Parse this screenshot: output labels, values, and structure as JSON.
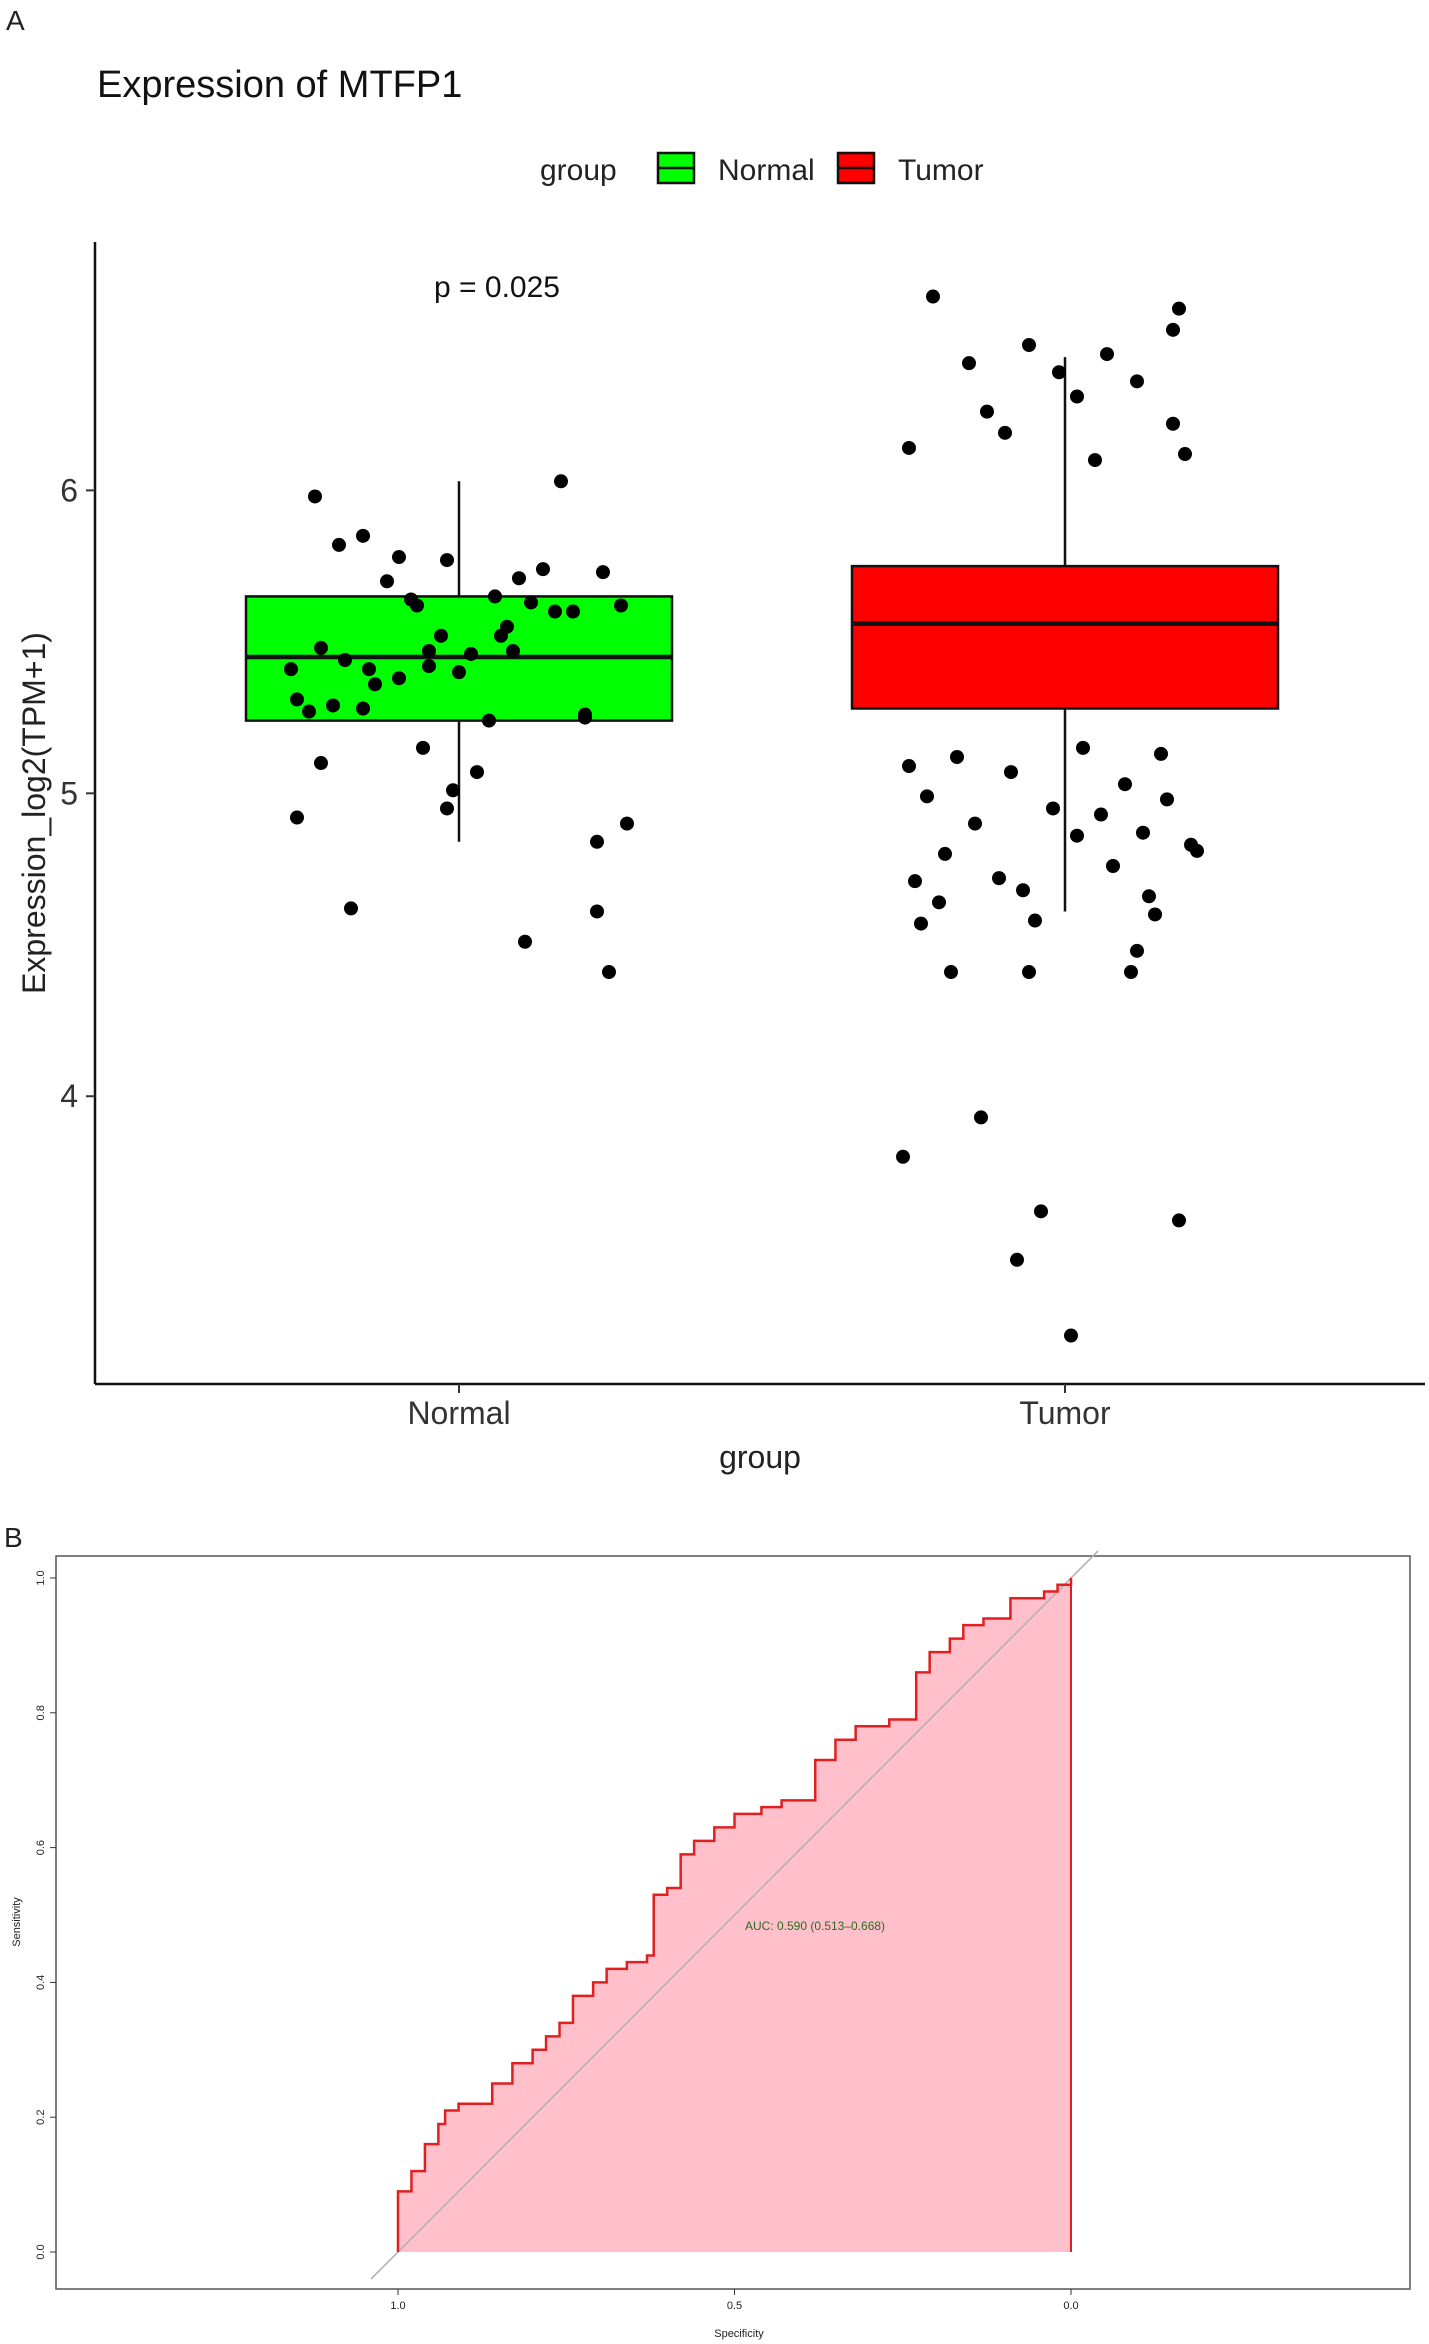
{
  "panel_a": {
    "letter": "A",
    "legend_title": "group",
    "pvalue_text": "p = 0.025"
  },
  "panel_b": {
    "letter": "B"
  },
  "colors": {
    "normal": "#00ff00",
    "tumor": "#ff0000",
    "roc_line": "#e02020",
    "roc_fill": "#ffc0cb",
    "diagonal": "#b0b0b0",
    "auc_text": "#2d6a1e"
  },
  "chart_data": [
    {
      "type": "box",
      "title": "Expression of MTFP1",
      "xlabel": "group",
      "ylabel": "Expression_log2(TPM+1)",
      "categories": [
        "Normal",
        "Tumor"
      ],
      "yticks": [
        4,
        5,
        6
      ],
      "ylim": [
        3.05,
        6.82
      ],
      "legend": {
        "title": "group",
        "position": "top",
        "entries": [
          "Normal",
          "Tumor"
        ]
      },
      "annotation": "p = 0.025",
      "boxes": [
        {
          "name": "Normal",
          "whisker_low": 4.84,
          "q1": 5.24,
          "median": 5.45,
          "q3": 5.65,
          "whisker_high": 6.03
        },
        {
          "name": "Tumor",
          "whisker_low": 4.61,
          "q1": 5.28,
          "median": 5.56,
          "q3": 5.75,
          "whisker_high": 6.44
        }
      ],
      "points": {
        "Normal": [
          [
            -0.27,
            4.92
          ],
          [
            -0.18,
            4.62
          ],
          [
            -0.23,
            5.1
          ],
          [
            -0.06,
            5.15
          ],
          [
            -0.02,
            4.95
          ],
          [
            0.11,
            4.51
          ],
          [
            0.23,
            4.84
          ],
          [
            0.23,
            4.61
          ],
          [
            0.25,
            4.41
          ],
          [
            0.28,
            4.9
          ],
          [
            -0.25,
            5.27
          ],
          [
            -0.21,
            5.29
          ],
          [
            -0.19,
            5.44
          ],
          [
            -0.15,
            5.41
          ],
          [
            -0.1,
            5.38
          ],
          [
            -0.05,
            5.47
          ],
          [
            0.02,
            5.46
          ],
          [
            0.05,
            5.24
          ],
          [
            0.08,
            5.55
          ],
          [
            0.12,
            5.63
          ],
          [
            0.16,
            5.6
          ],
          [
            0.21,
            5.26
          ],
          [
            0.24,
            5.73
          ],
          [
            0.27,
            5.62
          ],
          [
            -0.27,
            5.31
          ],
          [
            -0.23,
            5.48
          ],
          [
            -0.16,
            5.28
          ],
          [
            -0.12,
            5.7
          ],
          [
            -0.08,
            5.64
          ],
          [
            -0.03,
            5.52
          ],
          [
            0.0,
            5.4
          ],
          [
            0.03,
            5.07
          ],
          [
            0.06,
            5.65
          ],
          [
            0.1,
            5.71
          ],
          [
            0.14,
            5.74
          ],
          [
            0.19,
            5.6
          ],
          [
            -0.28,
            5.41
          ],
          [
            -0.24,
            5.98
          ],
          [
            -0.2,
            5.82
          ],
          [
            -0.16,
            5.85
          ],
          [
            -0.1,
            5.78
          ],
          [
            -0.02,
            5.77
          ],
          [
            0.17,
            6.03
          ],
          [
            -0.07,
            5.62
          ],
          [
            -0.05,
            5.42
          ],
          [
            0.07,
            5.52
          ],
          [
            -0.01,
            5.01
          ],
          [
            0.21,
            5.25
          ],
          [
            0.09,
            5.47
          ],
          [
            -0.14,
            5.36
          ]
        ],
        "Tumor": [
          [
            -0.22,
            6.64
          ],
          [
            -0.16,
            6.42
          ],
          [
            -0.06,
            6.48
          ],
          [
            0.07,
            6.45
          ],
          [
            0.18,
            6.53
          ],
          [
            0.19,
            6.6
          ],
          [
            -0.01,
            6.39
          ],
          [
            0.02,
            6.31
          ],
          [
            -0.13,
            6.26
          ],
          [
            0.12,
            6.36
          ],
          [
            0.18,
            6.22
          ],
          [
            -0.26,
            6.14
          ],
          [
            -0.1,
            6.19
          ],
          [
            0.05,
            6.1
          ],
          [
            0.2,
            6.12
          ],
          [
            -0.19,
            4.41
          ],
          [
            -0.06,
            4.41
          ],
          [
            0.11,
            4.41
          ],
          [
            -0.27,
            3.8
          ],
          [
            -0.14,
            3.93
          ],
          [
            -0.08,
            3.46
          ],
          [
            -0.04,
            3.62
          ],
          [
            0.01,
            3.21
          ],
          [
            0.19,
            3.59
          ],
          [
            -0.25,
            4.71
          ],
          [
            -0.21,
            4.64
          ],
          [
            -0.11,
            4.72
          ],
          [
            -0.05,
            4.58
          ],
          [
            0.08,
            4.76
          ],
          [
            0.15,
            4.6
          ],
          [
            0.21,
            4.83
          ],
          [
            -0.23,
            4.99
          ],
          [
            -0.15,
            4.9
          ],
          [
            -0.02,
            4.95
          ],
          [
            0.06,
            4.93
          ],
          [
            0.13,
            4.87
          ],
          [
            0.17,
            4.98
          ],
          [
            0.22,
            4.81
          ],
          [
            -0.26,
            5.09
          ],
          [
            -0.18,
            5.12
          ],
          [
            -0.09,
            5.07
          ],
          [
            0.03,
            5.15
          ],
          [
            0.1,
            5.03
          ],
          [
            0.16,
            5.13
          ],
          [
            -0.2,
            4.8
          ],
          [
            0.12,
            4.48
          ],
          [
            0.14,
            4.66
          ],
          [
            -0.24,
            4.57
          ],
          [
            0.02,
            4.86
          ],
          [
            -0.07,
            4.68
          ]
        ]
      },
      "point_color": "#000000"
    },
    {
      "type": "line",
      "xlabel": "Specificity",
      "ylabel": "Sensitivity",
      "xlim": [
        1.0,
        0.0
      ],
      "ylim": [
        0.0,
        1.0
      ],
      "xticks": [
        "1.0",
        "0.5",
        "0.0"
      ],
      "yticks": [
        "0.0",
        "0.2",
        "0.4",
        "0.6",
        "0.8",
        "1.0"
      ],
      "annotation": "AUC: 0.590 (0.513–0.668)",
      "series": [
        {
          "points": [
            [
              1.0,
              0.0
            ],
            [
              1.0,
              0.09
            ],
            [
              0.98,
              0.09
            ],
            [
              0.98,
              0.12
            ],
            [
              0.96,
              0.12
            ],
            [
              0.96,
              0.16
            ],
            [
              0.94,
              0.16
            ],
            [
              0.94,
              0.19
            ],
            [
              0.93,
              0.19
            ],
            [
              0.93,
              0.21
            ],
            [
              0.91,
              0.21
            ],
            [
              0.91,
              0.22
            ],
            [
              0.86,
              0.22
            ],
            [
              0.86,
              0.25
            ],
            [
              0.83,
              0.25
            ],
            [
              0.83,
              0.28
            ],
            [
              0.8,
              0.28
            ],
            [
              0.8,
              0.3
            ],
            [
              0.78,
              0.3
            ],
            [
              0.78,
              0.32
            ],
            [
              0.76,
              0.32
            ],
            [
              0.76,
              0.34
            ],
            [
              0.74,
              0.34
            ],
            [
              0.74,
              0.38
            ],
            [
              0.71,
              0.38
            ],
            [
              0.71,
              0.4
            ],
            [
              0.69,
              0.4
            ],
            [
              0.69,
              0.42
            ],
            [
              0.66,
              0.42
            ],
            [
              0.66,
              0.43
            ],
            [
              0.63,
              0.43
            ],
            [
              0.63,
              0.44
            ],
            [
              0.62,
              0.44
            ],
            [
              0.62,
              0.53
            ],
            [
              0.6,
              0.53
            ],
            [
              0.6,
              0.54
            ],
            [
              0.58,
              0.54
            ],
            [
              0.58,
              0.59
            ],
            [
              0.56,
              0.59
            ],
            [
              0.56,
              0.61
            ],
            [
              0.53,
              0.61
            ],
            [
              0.53,
              0.63
            ],
            [
              0.5,
              0.63
            ],
            [
              0.5,
              0.65
            ],
            [
              0.46,
              0.65
            ],
            [
              0.46,
              0.66
            ],
            [
              0.43,
              0.66
            ],
            [
              0.43,
              0.67
            ],
            [
              0.38,
              0.67
            ],
            [
              0.38,
              0.73
            ],
            [
              0.35,
              0.73
            ],
            [
              0.35,
              0.76
            ],
            [
              0.32,
              0.76
            ],
            [
              0.32,
              0.78
            ],
            [
              0.27,
              0.78
            ],
            [
              0.27,
              0.79
            ],
            [
              0.23,
              0.79
            ],
            [
              0.23,
              0.86
            ],
            [
              0.21,
              0.86
            ],
            [
              0.21,
              0.89
            ],
            [
              0.18,
              0.89
            ],
            [
              0.18,
              0.91
            ],
            [
              0.16,
              0.91
            ],
            [
              0.16,
              0.93
            ],
            [
              0.13,
              0.93
            ],
            [
              0.13,
              0.94
            ],
            [
              0.09,
              0.94
            ],
            [
              0.09,
              0.97
            ],
            [
              0.04,
              0.97
            ],
            [
              0.04,
              0.98
            ],
            [
              0.02,
              0.98
            ],
            [
              0.02,
              0.99
            ],
            [
              0.0,
              0.99
            ],
            [
              0.0,
              1.0
            ]
          ]
        }
      ]
    }
  ]
}
